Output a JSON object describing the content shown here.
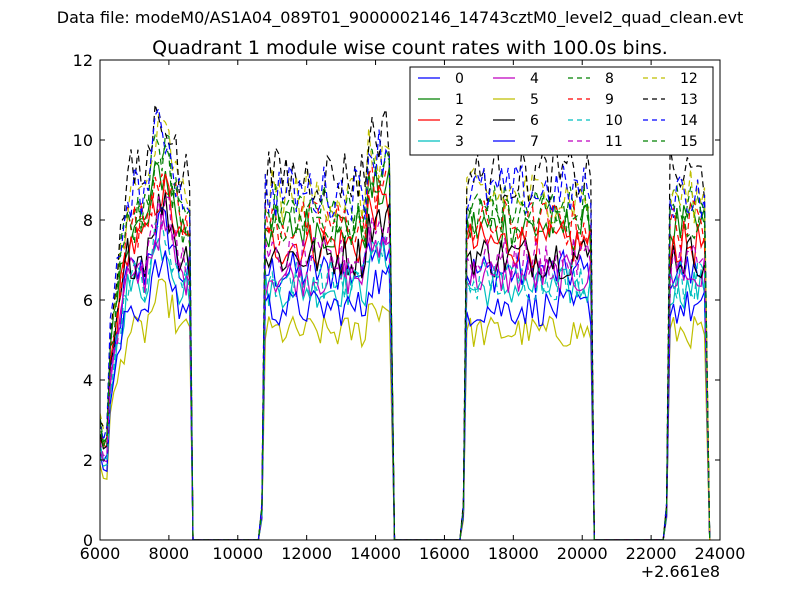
{
  "header": {
    "data_file": "Data file: modeM0/AS1A04_089T01_9000002146_14743cztM0_level2_quad_clean.evt"
  },
  "chart_data": {
    "type": "line",
    "title": "Quadrant 1 module wise count rates with 100.0s bins.",
    "xlabel": "",
    "ylabel": "",
    "xlim": [
      6000,
      24000
    ],
    "ylim": [
      0,
      12
    ],
    "x_ticks": [
      6000,
      8000,
      10000,
      12000,
      14000,
      16000,
      18000,
      20000,
      22000,
      24000
    ],
    "y_ticks": [
      0,
      2,
      4,
      6,
      8,
      10,
      12
    ],
    "x_offset_label": "+2.661e8",
    "legend": {
      "placement": "top-right",
      "columns": 4
    },
    "segments": [
      {
        "x_start": 6000,
        "x_end": 8600,
        "ramp_end": 6800
      },
      {
        "x_start": 10700,
        "x_end": 14450,
        "ramp_end": 10800
      },
      {
        "x_start": 16550,
        "x_end": 20250,
        "ramp_end": 16600
      },
      {
        "x_start": 22450,
        "x_end": 23600,
        "ramp_end": 22500
      }
    ],
    "bin_width": 100,
    "series": [
      {
        "name": "0",
        "color": "#0000ff",
        "dash": "solid",
        "level": 6.7
      },
      {
        "name": "1",
        "color": "#008000",
        "dash": "solid",
        "level": 7.8
      },
      {
        "name": "2",
        "color": "#ff0000",
        "dash": "solid",
        "level": 7.4
      },
      {
        "name": "3",
        "color": "#00bfbf",
        "dash": "solid",
        "level": 6.3
      },
      {
        "name": "4",
        "color": "#bf00bf",
        "dash": "solid",
        "level": 6.6
      },
      {
        "name": "5",
        "color": "#bfbf00",
        "dash": "solid",
        "level": 5.2
      },
      {
        "name": "6",
        "color": "#000000",
        "dash": "solid",
        "level": 7.1
      },
      {
        "name": "7",
        "color": "#0000ff",
        "dash": "solid",
        "level": 5.8
      },
      {
        "name": "8",
        "color": "#008000",
        "dash": "dashed",
        "level": 8.3
      },
      {
        "name": "9",
        "color": "#ff0000",
        "dash": "dashed",
        "level": 7.9
      },
      {
        "name": "10",
        "color": "#00bfbf",
        "dash": "dashed",
        "level": 6.5
      },
      {
        "name": "11",
        "color": "#bf00bf",
        "dash": "dashed",
        "level": 7.0
      },
      {
        "name": "12",
        "color": "#bfbf00",
        "dash": "dashed",
        "level": 8.6
      },
      {
        "name": "13",
        "color": "#000000",
        "dash": "dashed",
        "level": 9.1
      },
      {
        "name": "14",
        "color": "#0000ff",
        "dash": "dashed",
        "level": 8.7
      },
      {
        "name": "15",
        "color": "#008000",
        "dash": "dashed",
        "level": 8.0
      }
    ]
  }
}
